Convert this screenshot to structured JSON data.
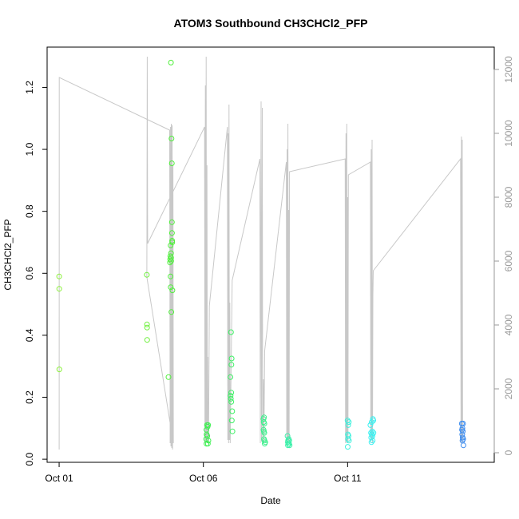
{
  "chart_data": {
    "type": "scatter",
    "title": "ATOM3 Southbound CH3CHCl2_PFP",
    "xlabel": "Date",
    "ylabel": "CH3CHCl2_PFP",
    "x_axis": {
      "type": "date",
      "range": [
        "2016-09-30T14:00",
        "2016-10-16T02:00"
      ],
      "ticks": [
        {
          "date": "2016-10-01",
          "label": "Oct 01"
        },
        {
          "date": "2016-10-06",
          "label": "Oct 06"
        },
        {
          "date": "2016-10-11",
          "label": "Oct 11"
        }
      ]
    },
    "y_axis": {
      "range": [
        -0.01,
        1.33
      ],
      "ticks": [
        0.0,
        0.2,
        0.4,
        0.6,
        0.8,
        1.0,
        1.2
      ],
      "tick_labels": [
        "0.0",
        "0.2",
        "0.4",
        "0.6",
        "0.8",
        "1.0",
        "1.2"
      ]
    },
    "y2_axis": {
      "range": [
        -300,
        12700
      ],
      "ticks": [
        0,
        2000,
        4000,
        6000,
        8000,
        10000,
        12000
      ],
      "tick_labels": [
        "0",
        "2000",
        "4000",
        "6000",
        "8000",
        "10000",
        "12000"
      ],
      "color": "#9a9a9a"
    },
    "grid": false,
    "legend": "none",
    "series": [
      {
        "kind": "points",
        "points": [
          {
            "x": "2016-10-01T00:00",
            "y": 0.59,
            "color": "#8cf03c"
          },
          {
            "x": "2016-10-01T00:05",
            "y": 0.55,
            "color": "#8cf03c"
          },
          {
            "x": "2016-10-01T00:10",
            "y": 0.29,
            "color": "#8cf03c"
          },
          {
            "x": "2016-10-04T01:00",
            "y": 0.595,
            "color": "#6ef03c"
          },
          {
            "x": "2016-10-04T01:05",
            "y": 0.435,
            "color": "#6ef03c"
          },
          {
            "x": "2016-10-04T01:10",
            "y": 0.425,
            "color": "#6ef03c"
          },
          {
            "x": "2016-10-04T01:15",
            "y": 0.385,
            "color": "#6ef03c"
          },
          {
            "x": "2016-10-04T19:00",
            "y": 0.265,
            "color": "#50f03c"
          },
          {
            "x": "2016-10-04T21:00",
            "y": 1.28,
            "color": "#50f03c"
          },
          {
            "x": "2016-10-04T21:30",
            "y": 1.035,
            "color": "#50f03c"
          },
          {
            "x": "2016-10-04T21:45",
            "y": 0.955,
            "color": "#50f03c"
          },
          {
            "x": "2016-10-04T21:50",
            "y": 0.765,
            "color": "#50f03c"
          },
          {
            "x": "2016-10-04T21:55",
            "y": 0.73,
            "color": "#50f03c"
          },
          {
            "x": "2016-10-04T22:00",
            "y": 0.705,
            "color": "#50f03c"
          },
          {
            "x": "2016-10-04T22:05",
            "y": 0.7,
            "color": "#50f03c"
          },
          {
            "x": "2016-10-04T20:45",
            "y": 0.69,
            "color": "#50f03c"
          },
          {
            "x": "2016-10-04T21:05",
            "y": 0.665,
            "color": "#50f03c"
          },
          {
            "x": "2016-10-04T20:30",
            "y": 0.655,
            "color": "#50f03c"
          },
          {
            "x": "2016-10-04T21:10",
            "y": 0.65,
            "color": "#50f03c"
          },
          {
            "x": "2016-10-04T20:20",
            "y": 0.645,
            "color": "#50f03c"
          },
          {
            "x": "2016-10-04T21:15",
            "y": 0.64,
            "color": "#50f03c"
          },
          {
            "x": "2016-10-04T20:15",
            "y": 0.635,
            "color": "#50f03c"
          },
          {
            "x": "2016-10-04T20:40",
            "y": 0.59,
            "color": "#50f03c"
          },
          {
            "x": "2016-10-04T20:50",
            "y": 0.555,
            "color": "#50f03c"
          },
          {
            "x": "2016-10-04T22:15",
            "y": 0.545,
            "color": "#50f03c"
          },
          {
            "x": "2016-10-04T21:20",
            "y": 0.475,
            "color": "#50f03c"
          },
          {
            "x": "2016-10-06T03:00",
            "y": 0.11,
            "color": "#3cf050"
          },
          {
            "x": "2016-10-06T03:30",
            "y": 0.105,
            "color": "#3cf050"
          },
          {
            "x": "2016-10-06T04:00",
            "y": 0.11,
            "color": "#3cf050"
          },
          {
            "x": "2016-10-06T02:30",
            "y": 0.095,
            "color": "#3cf050"
          },
          {
            "x": "2016-10-06T02:45",
            "y": 0.08,
            "color": "#3cf050"
          },
          {
            "x": "2016-10-06T03:15",
            "y": 0.075,
            "color": "#3cf050"
          },
          {
            "x": "2016-10-06T02:20",
            "y": 0.065,
            "color": "#3cf050"
          },
          {
            "x": "2016-10-06T04:10",
            "y": 0.06,
            "color": "#3cf050"
          },
          {
            "x": "2016-10-06T02:35",
            "y": 0.05,
            "color": "#3cf050"
          },
          {
            "x": "2016-10-06T03:45",
            "y": 0.05,
            "color": "#3cf050"
          },
          {
            "x": "2016-10-06T23:00",
            "y": 0.41,
            "color": "#3cf064"
          },
          {
            "x": "2016-10-06T23:30",
            "y": 0.325,
            "color": "#3cf064"
          },
          {
            "x": "2016-10-06T23:20",
            "y": 0.305,
            "color": "#3cf064"
          },
          {
            "x": "2016-10-06T22:30",
            "y": 0.265,
            "color": "#3cf064"
          },
          {
            "x": "2016-10-06T23:10",
            "y": 0.215,
            "color": "#3cf064"
          },
          {
            "x": "2016-10-06T22:40",
            "y": 0.205,
            "color": "#3cf064"
          },
          {
            "x": "2016-10-06T22:50",
            "y": 0.195,
            "color": "#3cf064"
          },
          {
            "x": "2016-10-06T23:15",
            "y": 0.185,
            "color": "#3cf064"
          },
          {
            "x": "2016-10-07T00:00",
            "y": 0.155,
            "color": "#3cf064"
          },
          {
            "x": "2016-10-06T23:40",
            "y": 0.125,
            "color": "#3cf064"
          },
          {
            "x": "2016-10-07T00:10",
            "y": 0.09,
            "color": "#3cf064"
          },
          {
            "x": "2016-10-08T02:00",
            "y": 0.13,
            "color": "#3cf08c"
          },
          {
            "x": "2016-10-08T02:30",
            "y": 0.135,
            "color": "#3cf08c"
          },
          {
            "x": "2016-10-08T02:15",
            "y": 0.12,
            "color": "#3cf08c"
          },
          {
            "x": "2016-10-08T02:45",
            "y": 0.115,
            "color": "#3cf08c"
          },
          {
            "x": "2016-10-08T02:05",
            "y": 0.095,
            "color": "#3cf08c"
          },
          {
            "x": "2016-10-08T02:20",
            "y": 0.09,
            "color": "#3cf08c"
          },
          {
            "x": "2016-10-08T02:40",
            "y": 0.085,
            "color": "#3cf08c"
          },
          {
            "x": "2016-10-08T02:25",
            "y": 0.065,
            "color": "#3cf08c"
          },
          {
            "x": "2016-10-08T02:50",
            "y": 0.06,
            "color": "#3cf08c"
          },
          {
            "x": "2016-10-08T03:30",
            "y": 0.055,
            "color": "#3cf08c"
          },
          {
            "x": "2016-10-08T03:00",
            "y": 0.05,
            "color": "#3cf08c"
          },
          {
            "x": "2016-10-08T22:00",
            "y": 0.075,
            "color": "#3cf0aa"
          },
          {
            "x": "2016-10-08T22:30",
            "y": 0.06,
            "color": "#3cf0aa"
          },
          {
            "x": "2016-10-08T23:00",
            "y": 0.065,
            "color": "#3cf0aa"
          },
          {
            "x": "2016-10-08T23:30",
            "y": 0.06,
            "color": "#3cf0aa"
          },
          {
            "x": "2016-10-08T22:15",
            "y": 0.055,
            "color": "#3cf0aa"
          },
          {
            "x": "2016-10-08T22:45",
            "y": 0.05,
            "color": "#3cf0aa"
          },
          {
            "x": "2016-10-08T23:15",
            "y": 0.05,
            "color": "#3cf0aa"
          },
          {
            "x": "2016-10-08T22:20",
            "y": 0.045,
            "color": "#3cf0aa"
          },
          {
            "x": "2016-10-08T23:45",
            "y": 0.045,
            "color": "#3cf0aa"
          },
          {
            "x": "2016-10-11T00:00",
            "y": 0.125,
            "color": "#3cf0dc"
          },
          {
            "x": "2016-10-11T01:00",
            "y": 0.12,
            "color": "#3cf0dc"
          },
          {
            "x": "2016-10-11T00:30",
            "y": 0.11,
            "color": "#3cf0dc"
          },
          {
            "x": "2016-10-11T00:15",
            "y": 0.08,
            "color": "#3cf0dc"
          },
          {
            "x": "2016-10-11T00:45",
            "y": 0.075,
            "color": "#3cf0dc"
          },
          {
            "x": "2016-10-11T00:20",
            "y": 0.065,
            "color": "#3cf0dc"
          },
          {
            "x": "2016-10-11T01:05",
            "y": 0.06,
            "color": "#3cf0dc"
          },
          {
            "x": "2016-10-11T00:05",
            "y": 0.04,
            "color": "#3cf0dc"
          },
          {
            "x": "2016-10-11T19:00",
            "y": 0.11,
            "color": "#3cf0f0"
          },
          {
            "x": "2016-10-11T20:00",
            "y": 0.12,
            "color": "#3cf0f0"
          },
          {
            "x": "2016-10-11T21:00",
            "y": 0.13,
            "color": "#3cf0f0"
          },
          {
            "x": "2016-10-11T21:20",
            "y": 0.125,
            "color": "#3cf0f0"
          },
          {
            "x": "2016-10-11T20:30",
            "y": 0.09,
            "color": "#3cf0f0"
          },
          {
            "x": "2016-10-11T19:30",
            "y": 0.085,
            "color": "#3cf0f0"
          },
          {
            "x": "2016-10-11T21:30",
            "y": 0.085,
            "color": "#3cf0f0"
          },
          {
            "x": "2016-10-11T20:10",
            "y": 0.08,
            "color": "#3cf0f0"
          },
          {
            "x": "2016-10-11T20:40",
            "y": 0.075,
            "color": "#3cf0f0"
          },
          {
            "x": "2016-10-11T19:40",
            "y": 0.07,
            "color": "#3cf0f0"
          },
          {
            "x": "2016-10-11T20:50",
            "y": 0.06,
            "color": "#3cf0f0"
          },
          {
            "x": "2016-10-11T19:50",
            "y": 0.055,
            "color": "#3cf0f0"
          },
          {
            "x": "2016-10-14T23:00",
            "y": 0.115,
            "color": "#3c8cf0"
          },
          {
            "x": "2016-10-15T00:00",
            "y": 0.115,
            "color": "#3c8cf0"
          },
          {
            "x": "2016-10-14T23:30",
            "y": 0.1,
            "color": "#3c8cf0"
          },
          {
            "x": "2016-10-14T23:10",
            "y": 0.095,
            "color": "#3c8cf0"
          },
          {
            "x": "2016-10-14T23:50",
            "y": 0.09,
            "color": "#3c8cf0"
          },
          {
            "x": "2016-10-14T23:20",
            "y": 0.08,
            "color": "#3c8cf0"
          },
          {
            "x": "2016-10-14T23:40",
            "y": 0.07,
            "color": "#3c8cf0"
          },
          {
            "x": "2016-10-15T00:10",
            "y": 0.065,
            "color": "#3c8cf0"
          },
          {
            "x": "2016-10-14T23:35",
            "y": 0.06,
            "color": "#3c8cf0"
          },
          {
            "x": "2016-10-15T00:20",
            "y": 0.045,
            "color": "#3c8cf0"
          }
        ]
      },
      {
        "kind": "line",
        "axis": "right",
        "color": "#c8c8c8",
        "points": [
          [
            "2016-10-01T00:00",
            100
          ],
          [
            "2016-10-01T00:05",
            11750
          ],
          [
            "2016-10-04T20:00",
            10100
          ],
          [
            "2016-10-04T20:20",
            300
          ],
          [
            "2016-10-04T20:40",
            10200
          ],
          [
            "2016-10-04T21:00",
            200
          ],
          [
            "2016-10-04T21:20",
            10300
          ],
          [
            "2016-10-04T21:40",
            150
          ],
          [
            "2016-10-04T22:00",
            10250
          ],
          [
            "2016-10-04T22:20",
            100
          ],
          [
            "2016-10-04T22:40",
            9000
          ],
          [
            "2016-10-04T23:00",
            300
          ],
          [
            "2016-10-04T01:00",
            5500
          ],
          [
            "2016-10-04T01:20",
            12400
          ],
          [
            "2016-10-04T01:40",
            6550
          ],
          [
            "2016-10-06T01:00",
            10200
          ],
          [
            "2016-10-06T01:20",
            300
          ],
          [
            "2016-10-06T01:40",
            11500
          ],
          [
            "2016-10-06T02:00",
            400
          ],
          [
            "2016-10-06T02:20",
            12400
          ],
          [
            "2016-10-06T02:40",
            350
          ],
          [
            "2016-10-06T03:00",
            9000
          ],
          [
            "2016-10-06T03:20",
            300
          ],
          [
            "2016-10-06T03:40",
            3000
          ],
          [
            "2016-10-06T04:00",
            300
          ],
          [
            "2016-10-06T04:20",
            500
          ],
          [
            "2016-10-06T05:00",
            4600
          ],
          [
            "2016-10-06T20:00",
            10200
          ],
          [
            "2016-10-06T20:20",
            400
          ],
          [
            "2016-10-06T20:40",
            10000
          ],
          [
            "2016-10-06T21:00",
            300
          ],
          [
            "2016-10-06T21:20",
            10900
          ],
          [
            "2016-10-06T21:40",
            400
          ],
          [
            "2016-10-06T22:00",
            4700
          ],
          [
            "2016-10-06T22:20",
            300
          ],
          [
            "2016-10-07T00:00",
            5400
          ],
          [
            "2016-10-07T23:00",
            9200
          ],
          [
            "2016-10-07T23:20",
            300
          ],
          [
            "2016-10-08T00:00",
            11000
          ],
          [
            "2016-10-08T00:20",
            350
          ],
          [
            "2016-10-08T01:00",
            10800
          ],
          [
            "2016-10-08T01:20",
            300
          ],
          [
            "2016-10-08T02:00",
            2300
          ],
          [
            "2016-10-08T02:20",
            300
          ],
          [
            "2016-10-08T03:00",
            3200
          ],
          [
            "2016-10-08T21:00",
            9100
          ],
          [
            "2016-10-08T21:20",
            300
          ],
          [
            "2016-10-08T21:40",
            9500
          ],
          [
            "2016-10-08T22:00",
            400
          ],
          [
            "2016-10-08T22:20",
            10300
          ],
          [
            "2016-10-08T22:40",
            300
          ],
          [
            "2016-10-08T23:00",
            7600
          ],
          [
            "2016-10-08T23:20",
            350
          ],
          [
            "2016-10-08T23:40",
            8800
          ],
          [
            "2016-10-10T22:00",
            9200
          ],
          [
            "2016-10-10T22:20",
            300
          ],
          [
            "2016-10-10T22:40",
            10000
          ],
          [
            "2016-10-10T23:00",
            400
          ],
          [
            "2016-10-10T23:20",
            10300
          ],
          [
            "2016-10-10T23:40",
            300
          ],
          [
            "2016-10-11T00:00",
            8000
          ],
          [
            "2016-10-11T00:20",
            350
          ],
          [
            "2016-10-11T00:40",
            8700
          ],
          [
            "2016-10-11T19:00",
            9100
          ],
          [
            "2016-10-11T19:20",
            300
          ],
          [
            "2016-10-11T19:40",
            9500
          ],
          [
            "2016-10-11T20:00",
            400
          ],
          [
            "2016-10-11T20:20",
            9800
          ],
          [
            "2016-10-11T20:40",
            300
          ],
          [
            "2016-10-11T21:00",
            4900
          ],
          [
            "2016-10-11T21:20",
            5700
          ],
          [
            "2016-10-14T22:00",
            9200
          ],
          [
            "2016-10-14T22:20",
            300
          ],
          [
            "2016-10-14T22:40",
            9900
          ],
          [
            "2016-10-14T23:00",
            400
          ],
          [
            "2016-10-14T23:20",
            9800
          ],
          [
            "2016-10-14T23:40",
            300
          ]
        ]
      }
    ]
  }
}
